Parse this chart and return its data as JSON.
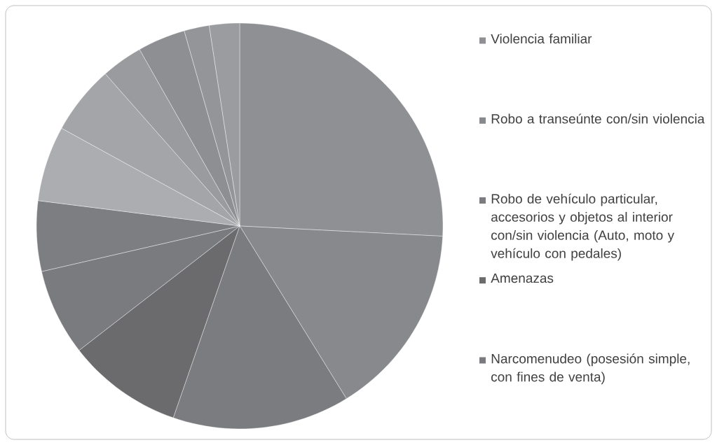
{
  "chart_data": {
    "type": "pie",
    "categories": [
      "Violencia familiar",
      "Robo a transeúnte con/sin violencia",
      "Robo de vehículo particular, accesorios y objetos al interior con/sin violencia (Auto, moto y vehículo con pedales)",
      "Amenazas",
      "Narcomenudeo (posesión simple, con fines de venta)",
      null,
      null,
      null,
      null,
      null,
      null,
      null
    ],
    "values": [
      25.8,
      15.4,
      14.1,
      9.2,
      6.9,
      5.6,
      6.0,
      5.5,
      3.3,
      3.8,
      2.0,
      2.4
    ],
    "colors": [
      "#8f9094",
      "#88898d",
      "#7b7c80",
      "#6b6b6e",
      "#7a7b7f",
      "#7d7e82",
      "#acadb0",
      "#a4a5a8",
      "#9a9b9e",
      "#8e8f93",
      "#949599",
      "#9b9ca0"
    ],
    "legend": "right"
  }
}
